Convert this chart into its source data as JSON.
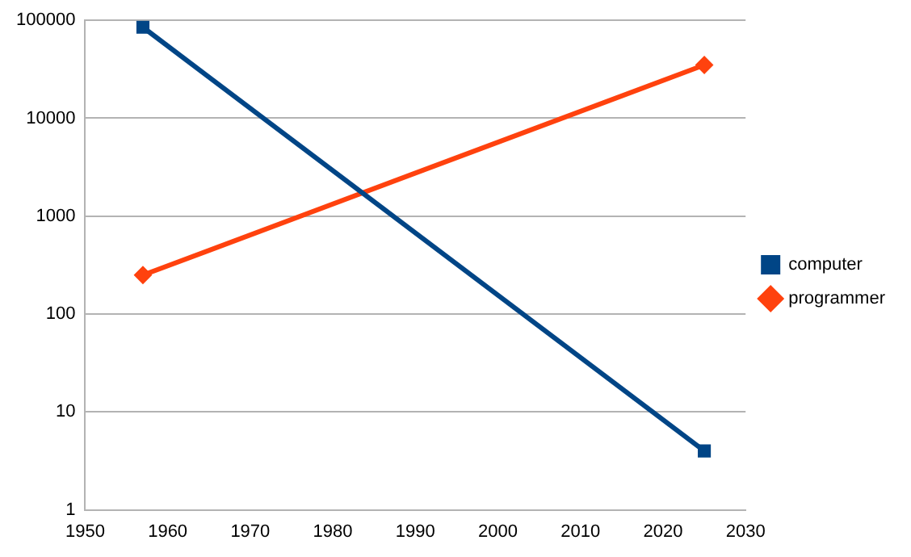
{
  "chart_data": {
    "type": "line",
    "x": [
      1957,
      2025
    ],
    "series": [
      {
        "name": "computer",
        "color": "#004586",
        "values": [
          85000,
          4
        ],
        "marker": "square"
      },
      {
        "name": "programmer",
        "color": "#ff420e",
        "values": [
          250,
          35000
        ],
        "marker": "diamond"
      }
    ],
    "log": "y",
    "xlim": [
      1950,
      2030
    ],
    "xticks": [
      1950,
      1960,
      1970,
      1980,
      1990,
      2000,
      2010,
      2020,
      2030
    ],
    "ylim": [
      1,
      100000
    ],
    "yticks": [
      1,
      10,
      100,
      1000,
      10000,
      100000
    ],
    "grid": "y",
    "legend": "right",
    "line_style": "solid"
  }
}
